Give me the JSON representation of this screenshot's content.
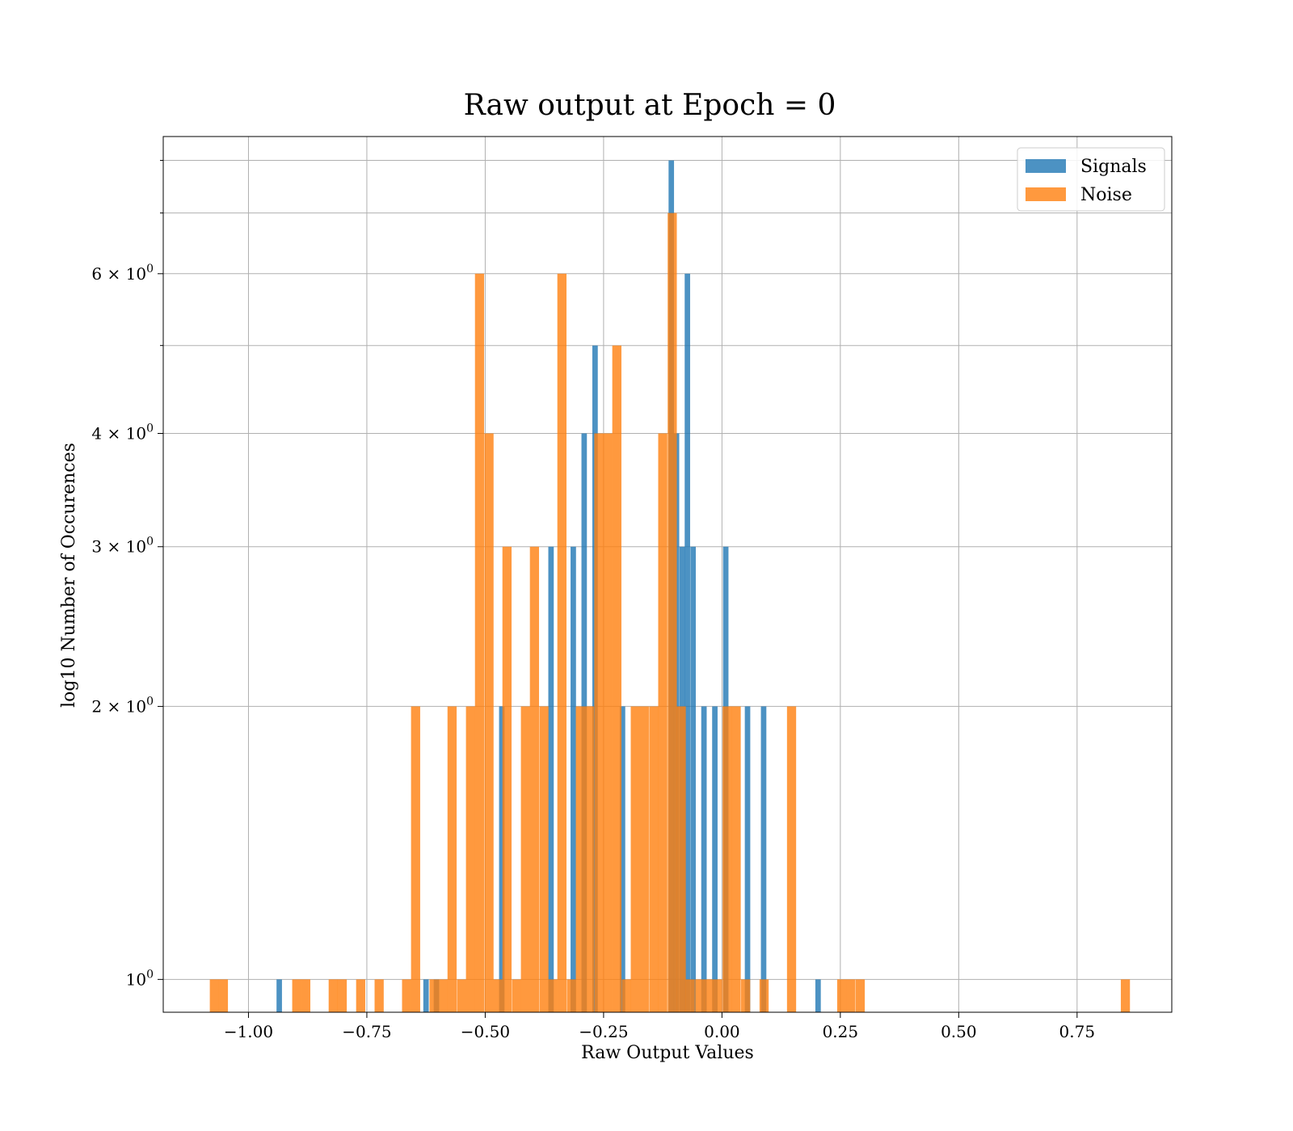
{
  "chart_data": {
    "type": "bar",
    "subtype": "overlaid-histogram",
    "title": "Raw output at Epoch = 0",
    "xlabel": "Raw Output Values",
    "ylabel": "log10 Number of Occurences",
    "y_scale": "log",
    "xlim": [
      -1.18,
      0.95
    ],
    "ylim": [
      0.92,
      8.5
    ],
    "grid": true,
    "legend_position": "top-right",
    "x_ticks": [
      -1.0,
      -0.75,
      -0.5,
      -0.25,
      0.0,
      0.25,
      0.5,
      0.75
    ],
    "x_tick_labels": [
      "−1.00",
      "−0.75",
      "−0.50",
      "−0.25",
      "0.00",
      "0.25",
      "0.50",
      "0.75"
    ],
    "y_ticks": [
      1,
      2,
      3,
      4,
      6
    ],
    "y_tick_labels": [
      {
        "base": "10",
        "exp": "0"
      },
      {
        "coef": "2",
        "base": "10",
        "exp": "0"
      },
      {
        "coef": "3",
        "base": "10",
        "exp": "0"
      },
      {
        "coef": "4",
        "base": "10",
        "exp": "0"
      },
      {
        "coef": "6",
        "base": "10",
        "exp": "0"
      }
    ],
    "y_minor_ticks": [
      5,
      7,
      8
    ],
    "series": [
      {
        "name": "Signals",
        "color": "#1f77b4",
        "opacity": 0.8,
        "bin_width": 0.0115,
        "bins": [
          [
            -0.935,
            1
          ],
          [
            -0.625,
            1
          ],
          [
            -0.603,
            1
          ],
          [
            -0.465,
            2
          ],
          [
            -0.361,
            3
          ],
          [
            -0.314,
            3
          ],
          [
            -0.291,
            4
          ],
          [
            -0.268,
            5
          ],
          [
            -0.21,
            2
          ],
          [
            -0.107,
            8
          ],
          [
            -0.096,
            4
          ],
          [
            -0.084,
            3
          ],
          [
            -0.073,
            6
          ],
          [
            -0.061,
            3
          ],
          [
            -0.038,
            2
          ],
          [
            -0.015,
            2
          ],
          [
            0.008,
            3
          ],
          [
            0.054,
            2
          ],
          [
            0.088,
            2
          ],
          [
            0.203,
            1
          ]
        ]
      },
      {
        "name": "Noise",
        "color": "#ff7f0e",
        "opacity": 0.8,
        "bin_width": 0.0193,
        "bins": [
          [
            -1.072,
            1
          ],
          [
            -1.053,
            1
          ],
          [
            -0.898,
            1
          ],
          [
            -0.879,
            1
          ],
          [
            -0.821,
            1
          ],
          [
            -0.802,
            1
          ],
          [
            -0.763,
            1
          ],
          [
            -0.724,
            1
          ],
          [
            -0.666,
            1
          ],
          [
            -0.647,
            2
          ],
          [
            -0.608,
            1
          ],
          [
            -0.589,
            1
          ],
          [
            -0.57,
            2
          ],
          [
            -0.55,
            1
          ],
          [
            -0.531,
            2
          ],
          [
            -0.512,
            6
          ],
          [
            -0.492,
            4
          ],
          [
            -0.473,
            1
          ],
          [
            -0.454,
            3
          ],
          [
            -0.434,
            1
          ],
          [
            -0.415,
            2
          ],
          [
            -0.396,
            3
          ],
          [
            -0.376,
            2
          ],
          [
            -0.357,
            1
          ],
          [
            -0.338,
            6
          ],
          [
            -0.318,
            1
          ],
          [
            -0.299,
            2
          ],
          [
            -0.28,
            2
          ],
          [
            -0.26,
            4
          ],
          [
            -0.241,
            4
          ],
          [
            -0.222,
            5
          ],
          [
            -0.202,
            1
          ],
          [
            -0.183,
            2
          ],
          [
            -0.164,
            2
          ],
          [
            -0.144,
            2
          ],
          [
            -0.125,
            4
          ],
          [
            -0.105,
            7
          ],
          [
            -0.086,
            2
          ],
          [
            -0.067,
            1
          ],
          [
            -0.047,
            1
          ],
          [
            -0.028,
            1
          ],
          [
            -0.009,
            1
          ],
          [
            0.011,
            2
          ],
          [
            0.03,
            2
          ],
          [
            0.05,
            1
          ],
          [
            0.089,
            1
          ],
          [
            0.147,
            2
          ],
          [
            0.253,
            1
          ],
          [
            0.272,
            1
          ],
          [
            0.292,
            1
          ],
          [
            0.852,
            1
          ]
        ]
      }
    ]
  }
}
